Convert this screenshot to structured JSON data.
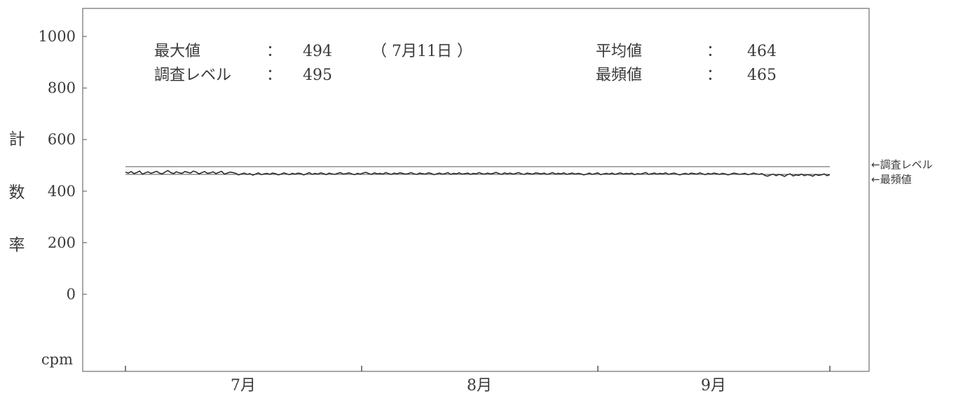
{
  "chart_data": {
    "type": "line",
    "ylabel": "計数率",
    "yunit": "cpm",
    "ylim": [
      -250,
      1100
    ],
    "yticks": [
      0,
      200,
      400,
      600,
      800,
      1000
    ],
    "xticks": [
      {
        "label": "7月"
      },
      {
        "label": "8月"
      },
      {
        "label": "9月"
      }
    ],
    "stats": {
      "max_label": "最大値",
      "max_value": "494",
      "max_date": "（ 7月11日 ）",
      "survey_label": "調査レベル",
      "survey_value": "495",
      "mean_label": "平均値",
      "mean_value": "464",
      "mode_label": "最頻値",
      "mode_value": "465",
      "colon": "："
    },
    "reference_lines": [
      {
        "name": "調査レベル",
        "value": 495,
        "annotation": "←調査レベル"
      },
      {
        "name": "最頻値",
        "value": 465,
        "annotation": "←最頻値"
      }
    ],
    "series": [
      {
        "values": [
          474,
          470,
          476,
          468,
          472,
          478,
          466,
          471,
          475,
          469,
          473,
          477,
          470,
          467,
          474,
          480,
          472,
          468,
          475,
          471,
          469,
          476,
          473,
          470,
          478,
          474,
          467,
          472,
          476,
          469,
          471,
          475,
          468,
          473,
          477,
          466,
          470,
          474,
          472,
          469,
          463,
          467,
          470,
          465,
          468,
          462,
          466,
          471,
          464,
          467,
          469,
          465,
          470,
          468,
          463,
          466,
          471,
          467,
          464,
          469,
          466,
          470,
          468,
          463,
          467,
          472,
          465,
          469,
          466,
          471,
          468,
          464,
          470,
          467,
          465,
          469,
          472,
          466,
          468,
          471,
          467,
          464,
          469,
          466,
          470,
          473,
          468,
          465,
          471,
          467,
          469,
          466,
          472,
          468,
          465,
          470,
          467,
          471,
          469,
          466,
          468,
          472,
          467,
          465,
          470,
          468,
          466,
          471,
          469,
          464,
          467,
          470,
          466,
          468,
          472,
          465,
          469,
          467,
          471,
          466,
          468,
          470,
          465,
          469,
          467,
          472,
          468,
          466,
          470,
          467,
          469,
          473,
          468,
          465,
          471,
          467,
          470,
          466,
          469,
          472,
          467,
          465,
          470,
          468,
          466,
          471,
          469,
          467,
          470,
          465,
          468,
          472,
          466,
          469,
          467,
          471,
          465,
          468,
          470,
          466,
          469,
          467,
          463,
          466,
          470,
          465,
          468,
          471,
          464,
          467,
          469,
          466,
          470,
          465,
          468,
          471,
          466,
          469,
          467,
          470,
          464,
          468,
          466,
          469,
          472,
          465,
          468,
          470,
          466,
          469,
          467,
          471,
          465,
          468,
          470,
          466,
          463,
          467,
          469,
          465,
          470,
          468,
          466,
          471,
          467,
          464,
          469,
          466,
          470,
          468,
          465,
          469,
          467,
          463,
          466,
          470,
          468,
          465,
          467,
          469,
          464,
          466,
          470,
          467,
          465,
          468,
          461,
          458,
          463,
          466,
          460,
          465,
          462,
          457,
          464,
          467,
          459,
          463,
          461,
          466,
          460,
          464,
          462,
          458,
          465,
          461,
          463,
          467,
          460,
          464
        ]
      }
    ]
  }
}
